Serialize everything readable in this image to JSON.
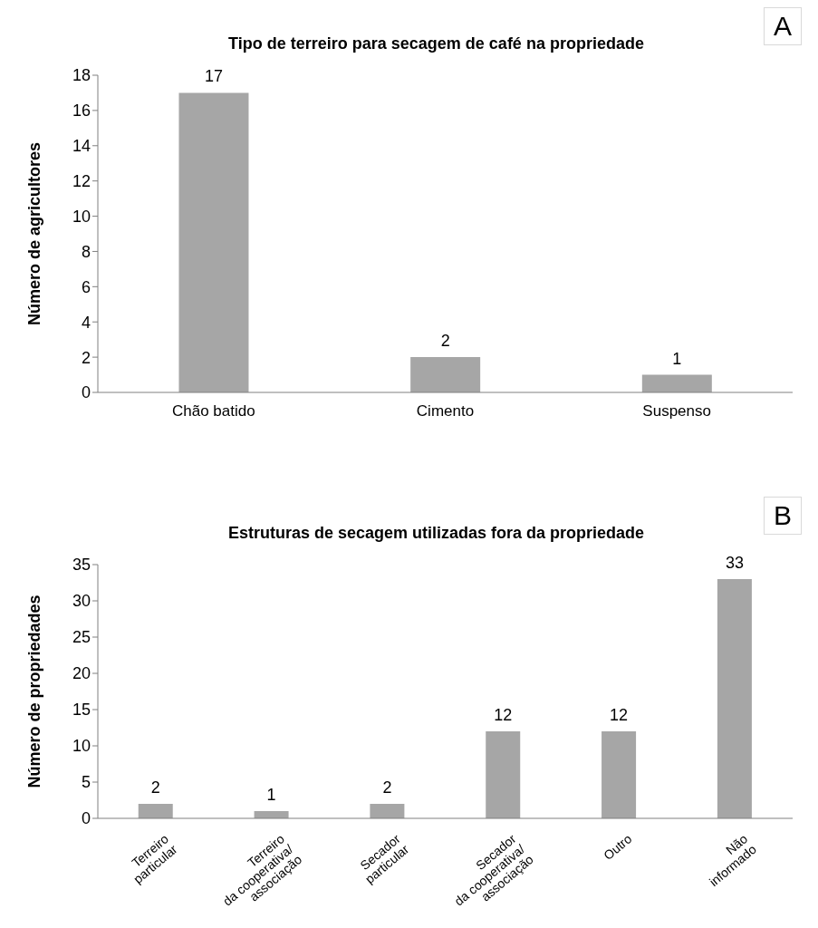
{
  "chart_data": [
    {
      "type": "bar",
      "title": "Tipo de terreiro para secagem de café na propriedade",
      "ylabel": "Número de agricultores",
      "categories": [
        "Chão batido",
        "Cimento",
        "Suspenso"
      ],
      "values": [
        17,
        2,
        1
      ],
      "color": "#a6a6a6",
      "ylim": [
        0,
        18
      ],
      "yticks": [
        0,
        2,
        4,
        6,
        8,
        10,
        12,
        14,
        16,
        18
      ],
      "grid": false,
      "data_labels": true,
      "annotations": [
        "A"
      ]
    },
    {
      "type": "bar",
      "title": "Estruturas de secagem utilizadas fora da propriedade",
      "ylabel": "Número de propriedades",
      "categories": [
        "Terreiro\nparticular",
        "Terreiro\nda cooperativa/\nassociação",
        "Secador\nparticular",
        "Secador\nda cooperativa/\nassociação",
        "Outro",
        "Não\ninformado"
      ],
      "values": [
        2,
        1,
        2,
        12,
        12,
        33
      ],
      "color": "#a6a6a6",
      "ylim": [
        0,
        35
      ],
      "yticks": [
        0,
        5,
        10,
        15,
        20,
        25,
        30,
        35
      ],
      "grid": false,
      "data_labels": true,
      "annotations": [
        "B"
      ]
    }
  ]
}
